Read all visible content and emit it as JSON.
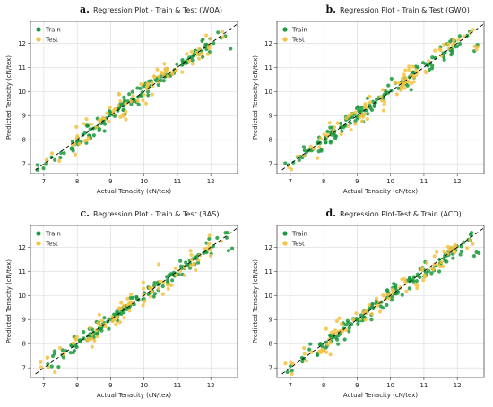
{
  "chart_data": [
    {
      "type": "scatter",
      "letter": "a.",
      "title": "Regression Plot - Train & Test (WOA)",
      "xlabel": "Actual Tenacity (cN/tex)",
      "ylabel": "Predicted Tenacity (cN/tex)",
      "xlim": [
        6.6,
        12.8
      ],
      "ylim": [
        6.6,
        12.9
      ],
      "xticks": [
        7,
        8,
        9,
        10,
        11,
        12
      ],
      "yticks": [
        7,
        8,
        9,
        10,
        11,
        12
      ],
      "grid": true,
      "legend": "top-left",
      "reference_line": "y = x (dashed)",
      "series": [
        {
          "name": "Train",
          "color": "#1a9a3c"
        },
        {
          "name": "Test",
          "color": "#f5c242"
        }
      ]
    },
    {
      "type": "scatter",
      "letter": "b.",
      "title": "Regression Plot - Train & Test (GWO)",
      "xlabel": "Actual Tenacity (cN/tex)",
      "ylabel": "Predicted Tenacity (cN/tex)",
      "xlim": [
        6.6,
        12.8
      ],
      "ylim": [
        6.6,
        12.9
      ],
      "xticks": [
        7,
        8,
        9,
        10,
        11,
        12
      ],
      "yticks": [
        7,
        8,
        9,
        10,
        11,
        12
      ],
      "grid": true,
      "legend": "top-left",
      "reference_line": "y = x (dashed)",
      "series": [
        {
          "name": "Train",
          "color": "#1a9a3c"
        },
        {
          "name": "Test",
          "color": "#f5c242"
        }
      ]
    },
    {
      "type": "scatter",
      "letter": "c.",
      "title": "Regression Plot - Train & Test (BAS)",
      "xlabel": "Actual Tenacity (cN/tex)",
      "ylabel": "Predicted Tenacity (cN/tex)",
      "xlim": [
        6.6,
        12.8
      ],
      "ylim": [
        6.6,
        12.9
      ],
      "xticks": [
        7,
        8,
        9,
        10,
        11,
        12
      ],
      "yticks": [
        7,
        8,
        9,
        10,
        11,
        12
      ],
      "grid": true,
      "legend": "top-left",
      "reference_line": "y = x (dashed)",
      "series": [
        {
          "name": "Train",
          "color": "#1a9a3c"
        },
        {
          "name": "Test",
          "color": "#f5c242"
        }
      ]
    },
    {
      "type": "scatter",
      "letter": "d.",
      "title": "Regression Plot-Test & Train (ACO)",
      "xlabel": "Actual Tenacity (cN/tex)",
      "ylabel": "Predicted Tenacity (cN/tex)",
      "xlim": [
        6.6,
        12.8
      ],
      "ylim": [
        6.6,
        12.9
      ],
      "xticks": [
        7,
        8,
        9,
        10,
        11,
        12
      ],
      "yticks": [
        7,
        8,
        9,
        10,
        11,
        12
      ],
      "grid": true,
      "legend": "top-left",
      "reference_line": "y = x (dashed)",
      "series": [
        {
          "name": "Train",
          "color": "#1a9a3c"
        },
        {
          "name": "Test",
          "color": "#f5c242"
        }
      ]
    }
  ]
}
